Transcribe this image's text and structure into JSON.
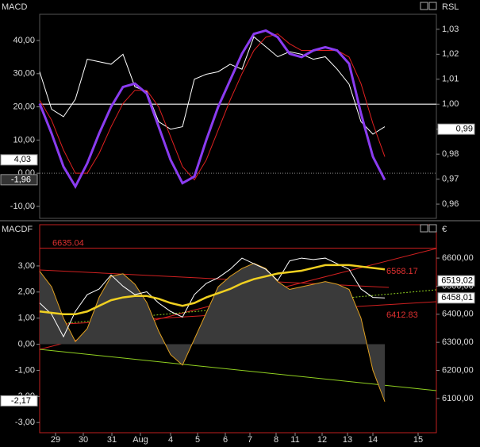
{
  "chart_data": [
    {
      "type": "line",
      "title": "MACD",
      "y2_title": "RSL",
      "xlim": [
        0,
        100
      ],
      "ylim": [
        -13.6,
        47.9
      ],
      "y2lim": [
        0.9543,
        1.036
      ],
      "yticks": [
        {
          "value": 40,
          "label": "40,00"
        },
        {
          "value": 30,
          "label": "30,00"
        },
        {
          "value": 20,
          "label": "20,00"
        },
        {
          "value": 10,
          "label": "10,00"
        },
        {
          "value": 0,
          "label": "0,00"
        },
        {
          "value": -10,
          "label": "-10,00"
        }
      ],
      "y2ticks": [
        {
          "value": 1.03,
          "label": "1,03"
        },
        {
          "value": 1.02,
          "label": "1,02"
        },
        {
          "value": 1.01,
          "label": "1,01"
        },
        {
          "value": 1,
          "label": "1,00"
        },
        {
          "value": 0.99,
          "label": "0,99"
        },
        {
          "value": 0.98,
          "label": "0,98"
        },
        {
          "value": 0.97,
          "label": "0,97"
        },
        {
          "value": 0.96,
          "label": "0,96"
        }
      ],
      "zero_line": true,
      "reference_line": {
        "value": 1,
        "axis": "y2"
      },
      "x": [
        0,
        3,
        6,
        9,
        12,
        15,
        18,
        21,
        24,
        27,
        30,
        33,
        36,
        39,
        42,
        45,
        48,
        51,
        54,
        57,
        60,
        63,
        66,
        69,
        72,
        75,
        78,
        81,
        84,
        87
      ],
      "series": [
        {
          "name": "RSL",
          "color": "#ffffff",
          "axis": "y2",
          "width": 1,
          "values": [
            1.013,
            0.998,
            0.995,
            1.002,
            1.018,
            1.017,
            1.016,
            1.02,
            1.007,
            1.005,
            0.993,
            0.99,
            0.991,
            1.01,
            1.012,
            1.013,
            1.016,
            1.014,
            1.027,
            1.023,
            1.019,
            1.021,
            1.02,
            1.018,
            1.019,
            1.014,
            1.008,
            0.993,
            0.988,
            0.991
          ]
        },
        {
          "name": "Signal",
          "color": "#e02020",
          "width": 1,
          "values": [
            22,
            16,
            7,
            0,
            0,
            6,
            14,
            21,
            25,
            25,
            20,
            11,
            2,
            -2,
            4,
            13,
            22,
            30,
            37,
            41,
            42,
            39,
            37,
            37,
            37,
            37,
            35,
            27,
            15,
            5
          ]
        },
        {
          "name": "MACD",
          "color": "#8a3cf0",
          "width": 3,
          "values": [
            21,
            12,
            2,
            -4,
            3,
            12,
            20,
            26,
            27,
            24,
            14,
            4,
            -3,
            -1,
            10,
            20,
            28,
            36,
            42,
            43,
            41,
            36,
            35,
            37,
            38,
            37,
            33,
            18,
            5,
            -2
          ]
        }
      ],
      "markers": [
        {
          "value": 4.03,
          "label": "4,03",
          "axis": "y",
          "color": "#ffffff"
        },
        {
          "value": -1.96,
          "label": "-1,96",
          "axis": "y",
          "color": "#333333"
        },
        {
          "value": 0.99,
          "label": "0,99",
          "axis": "y2",
          "color": "#ffffff"
        }
      ]
    },
    {
      "type": "line",
      "title": "MACDF",
      "y2_title": "€",
      "xlim": [
        0,
        100
      ],
      "ylim": [
        -3.39,
        4.58
      ],
      "y2lim": [
        5978,
        6719
      ],
      "yticks": [
        {
          "value": 3,
          "label": "3,00"
        },
        {
          "value": 2,
          "label": "2,00"
        },
        {
          "value": 1,
          "label": "1,00"
        },
        {
          "value": 0,
          "label": "0,00"
        },
        {
          "value": -1,
          "label": "-1,00"
        },
        {
          "value": -2,
          "label": "-2,00"
        },
        {
          "value": -3,
          "label": "-3,00"
        }
      ],
      "y2ticks": [
        {
          "value": 6600,
          "label": "6600,00"
        },
        {
          "value": 6500,
          "label": "6500,00"
        },
        {
          "value": 6400,
          "label": "6400,00"
        },
        {
          "value": 6300,
          "label": "6300,00"
        },
        {
          "value": 6200,
          "label": "6200,00"
        },
        {
          "value": 6100,
          "label": "6100,00"
        }
      ],
      "xticks": [
        {
          "value": 4,
          "label": "29"
        },
        {
          "value": 11,
          "label": "30"
        },
        {
          "value": 18.2,
          "label": "31"
        },
        {
          "value": 25.4,
          "label": "Aug"
        },
        {
          "value": 33,
          "label": "4"
        },
        {
          "value": 39.8,
          "label": "5"
        },
        {
          "value": 46.8,
          "label": "6"
        },
        {
          "value": 53,
          "label": "7"
        },
        {
          "value": 59.6,
          "label": "8"
        },
        {
          "value": 64.4,
          "label": "11"
        },
        {
          "value": 71.2,
          "label": "12"
        },
        {
          "value": 77.6,
          "label": "13"
        },
        {
          "value": 84,
          "label": "14"
        },
        {
          "value": 95.4,
          "label": "15"
        }
      ],
      "x": [
        0,
        3,
        6,
        9,
        12,
        15,
        18,
        21,
        24,
        27,
        30,
        33,
        36,
        39,
        42,
        45,
        48,
        51,
        54,
        57,
        60,
        63,
        66,
        69,
        72,
        75,
        78,
        81,
        84,
        87
      ],
      "series": [
        {
          "name": "MACDF",
          "color": "#e0a020",
          "width": 1,
          "fill": "#3a3a3a",
          "values": [
            2.8,
            2.2,
            1,
            0.1,
            0.6,
            1.8,
            2.6,
            2.7,
            2.3,
            1.6,
            0.5,
            -0.4,
            -0.8,
            0.2,
            1.2,
            2.2,
            2.6,
            2.9,
            3.1,
            2.9,
            2.4,
            2.1,
            2.2,
            2.3,
            2.4,
            2.3,
            2.1,
            1,
            -1,
            -2.2
          ]
        },
        {
          "name": "Price",
          "color": "#ffffff",
          "axis": "y2",
          "width": 1,
          "values": [
            6440,
            6400,
            6320,
            6410,
            6470,
            6490,
            6540,
            6500,
            6470,
            6480,
            6440,
            6410,
            6390,
            6470,
            6510,
            6530,
            6560,
            6600,
            6580,
            6560,
            6520,
            6590,
            6600,
            6595,
            6600,
            6580,
            6560,
            6490,
            6460,
            6458
          ]
        },
        {
          "name": "Average",
          "color": "#f0d020",
          "axis": "y2",
          "width": 2.5,
          "values": [
            6410,
            6405,
            6400,
            6400,
            6410,
            6430,
            6450,
            6460,
            6465,
            6465,
            6455,
            6440,
            6430,
            6440,
            6460,
            6475,
            6490,
            6510,
            6525,
            6535,
            6545,
            6550,
            6555,
            6565,
            6575,
            6575,
            6575,
            6570,
            6565,
            6560
          ]
        }
      ],
      "levels": [
        6635.04,
        6568.17,
        6412.83
      ],
      "markers": [
        {
          "value": -2.17,
          "label": "-2,17",
          "axis": "y",
          "color": "#ffffff"
        },
        {
          "value": 6519.02,
          "label": "6519,02",
          "axis": "y2",
          "color": "#ffffff"
        },
        {
          "value": 6458.01,
          "label": "6458,01",
          "axis": "y2",
          "color": "#ffffff"
        }
      ]
    }
  ]
}
